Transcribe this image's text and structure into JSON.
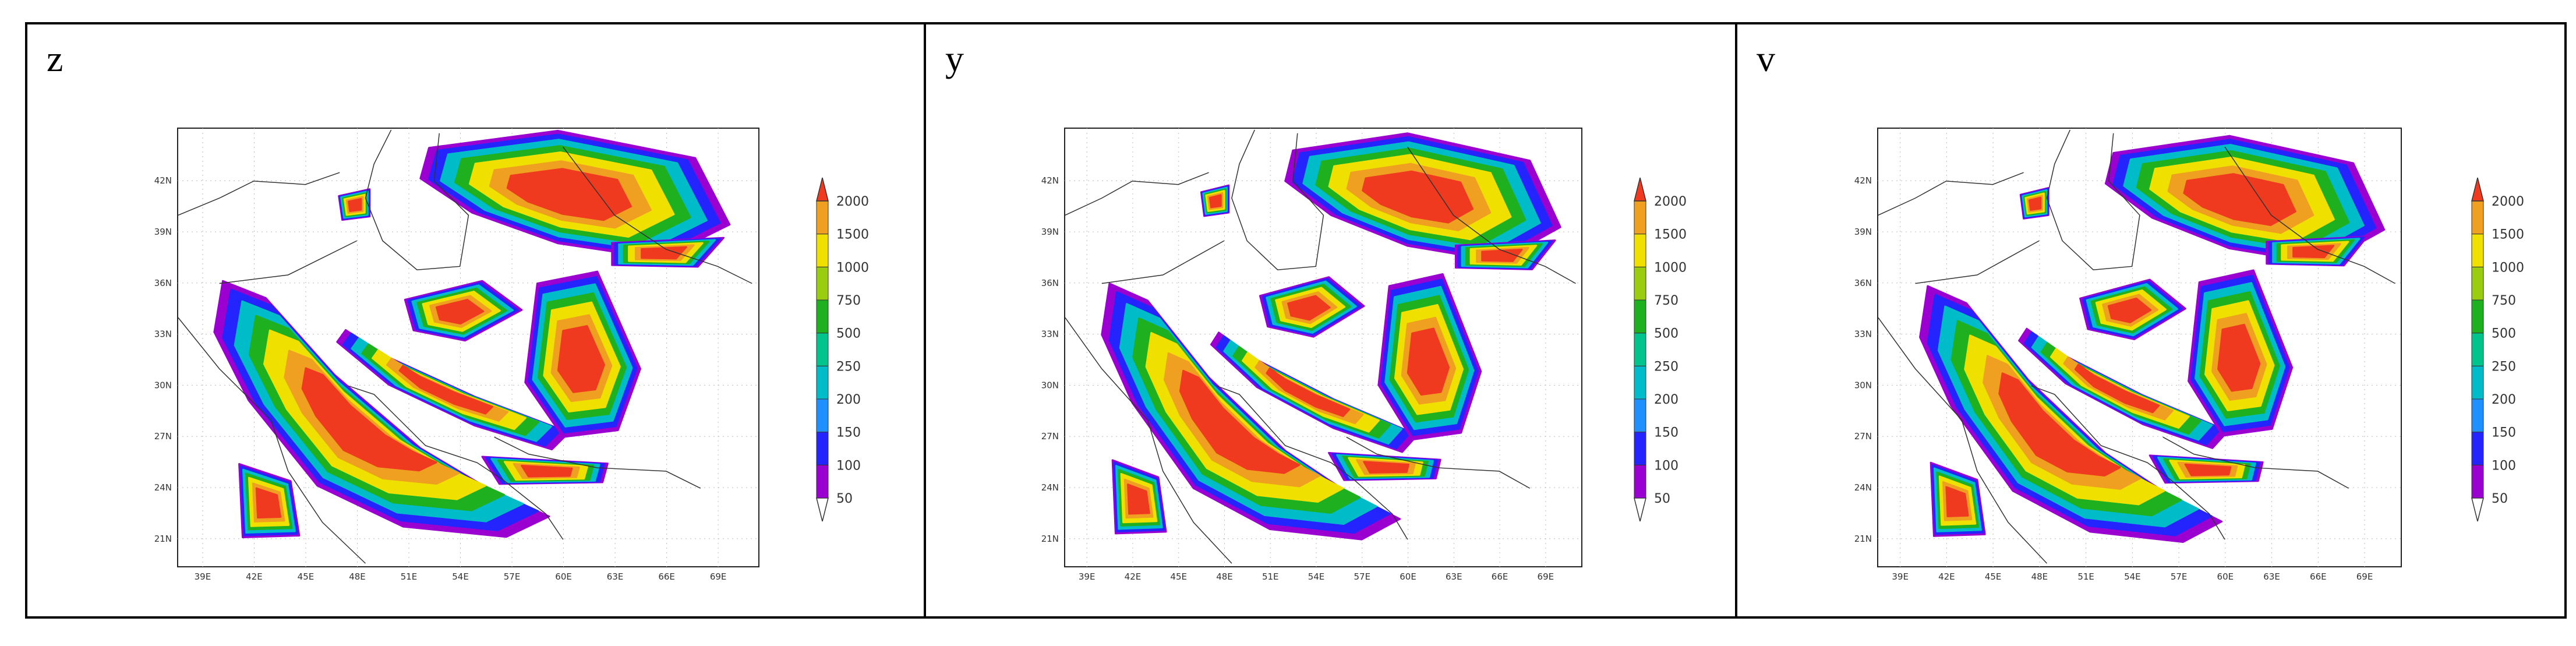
{
  "panels": [
    {
      "label": "z",
      "lon_labels": [
        "39E",
        "42E",
        "45E",
        "48E",
        "51E",
        "54E",
        "57E",
        "60E",
        "63E",
        "66E",
        "69E"
      ],
      "lat_labels": [
        "21N",
        "24N",
        "27N",
        "30N",
        "33N",
        "36N",
        "39N",
        "42N"
      ],
      "colorbar_labels": [
        "50",
        "100",
        "150",
        "200",
        "250",
        "500",
        "750",
        "1000",
        "1500",
        "2000"
      ]
    },
    {
      "label": "y",
      "lon_labels": [
        "39E",
        "42E",
        "45E",
        "48E",
        "51E",
        "54E",
        "57E",
        "60E",
        "63E",
        "66E",
        "69E"
      ],
      "lat_labels": [
        "21N",
        "24N",
        "27N",
        "30N",
        "33N",
        "36N",
        "39N",
        "42N"
      ],
      "colorbar_labels": [
        "50",
        "100",
        "150",
        "200",
        "250",
        "500",
        "750",
        "1000",
        "1500",
        "2000"
      ]
    },
    {
      "label": "v",
      "lon_labels": [
        "39E",
        "42E",
        "45E",
        "48E",
        "51E",
        "54E",
        "57E",
        "60E",
        "63E",
        "66E",
        "69E"
      ],
      "lat_labels": [
        "21N",
        "24N",
        "27N",
        "30N",
        "33N",
        "36N",
        "39N",
        "42N"
      ],
      "colorbar_labels": [
        "50",
        "100",
        "150",
        "200",
        "250",
        "500",
        "750",
        "1000",
        "1500",
        "2000"
      ]
    }
  ],
  "colorbar_colors": [
    "#9a00d0",
    "#2424ff",
    "#1e90ff",
    "#00bcc8",
    "#00c48c",
    "#1fb01f",
    "#9acd10",
    "#f0e000",
    "#f0a020",
    "#f03a20"
  ]
}
